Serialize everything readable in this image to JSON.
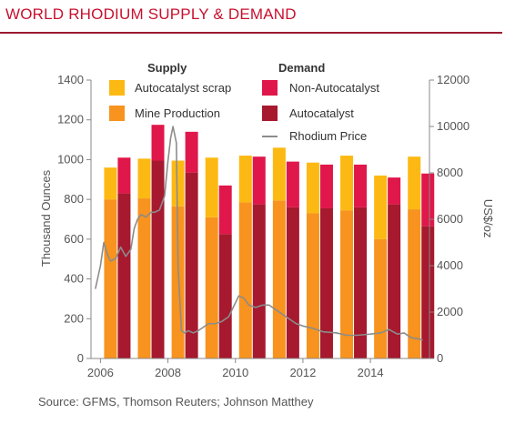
{
  "page": {
    "title": "WORLD RHODIUM SUPPLY & DEMAND",
    "source": "Source: GFMS, Thomson Reuters; Johnson Matthey"
  },
  "chart_data": {
    "type": "bar",
    "xlabel": "",
    "ylabel": "Thousand Ounces",
    "y2label": "US$/oz",
    "ylim": [
      0,
      1400
    ],
    "y2lim": [
      0,
      12000
    ],
    "yticks": [
      "0",
      "200",
      "400",
      "600",
      "800",
      "1000",
      "1200",
      "1400"
    ],
    "y2ticks": [
      "0",
      "2000",
      "4000",
      "6000",
      "8000",
      "10000",
      "12000"
    ],
    "xticks": [
      "2006",
      "2008",
      "2010",
      "2012",
      "2014"
    ],
    "grid": false,
    "legend_position": "top",
    "legend_groups": {
      "supply": "Supply",
      "demand": "Demand"
    },
    "categories": [
      "2006",
      "2007",
      "2008",
      "2009",
      "2010",
      "2011",
      "2012",
      "2013",
      "2014",
      "2015"
    ],
    "series": [
      {
        "name": "Mine Production",
        "group": "Supply",
        "color": "#f7931e",
        "values": [
          800,
          805,
          765,
          710,
          785,
          795,
          730,
          745,
          600,
          750
        ]
      },
      {
        "name": "Autocatalyst scrap",
        "group": "Supply",
        "color": "#fdb913",
        "values": [
          160,
          200,
          230,
          300,
          235,
          265,
          255,
          275,
          320,
          265
        ]
      },
      {
        "name": "Autocatalyst",
        "group": "Demand",
        "color": "#a6192e",
        "values": [
          830,
          995,
          935,
          625,
          775,
          760,
          755,
          760,
          775,
          665
        ]
      },
      {
        "name": "Non-Autocatalyst",
        "group": "Demand",
        "color": "#e0174a",
        "values": [
          180,
          180,
          205,
          245,
          240,
          230,
          220,
          215,
          135,
          265
        ]
      }
    ],
    "price": {
      "name": "Rhodium Price",
      "color": "#8c8c8c",
      "x": [
        2005.85,
        2006.0,
        2006.1,
        2006.2,
        2006.3,
        2006.45,
        2006.6,
        2006.75,
        2006.9,
        2007.0,
        2007.1,
        2007.2,
        2007.35,
        2007.5,
        2007.6,
        2007.75,
        2007.9,
        2008.0,
        2008.08,
        2008.15,
        2008.25,
        2008.3,
        2008.4,
        2008.5,
        2008.6,
        2008.75,
        2008.9,
        2009.0,
        2009.2,
        2009.4,
        2009.6,
        2009.8,
        2010.0,
        2010.1,
        2010.25,
        2010.4,
        2010.6,
        2010.8,
        2011.0,
        2011.2,
        2011.4,
        2011.6,
        2011.8,
        2012.0,
        2012.3,
        2012.6,
        2013.0,
        2013.3,
        2013.6,
        2014.0,
        2014.3,
        2014.55,
        2014.8,
        2015.0,
        2015.2,
        2015.4,
        2015.55
      ],
      "y": [
        3000,
        4000,
        5000,
        4500,
        4200,
        4300,
        4800,
        4400,
        4700,
        5600,
        6000,
        6200,
        6100,
        6300,
        6300,
        6400,
        7000,
        8500,
        9500,
        10000,
        9300,
        4000,
        1200,
        1100,
        1200,
        1100,
        1200,
        1300,
        1500,
        1500,
        1600,
        1800,
        2400,
        2700,
        2600,
        2300,
        2200,
        2300,
        2300,
        2100,
        1900,
        1700,
        1500,
        1400,
        1300,
        1150,
        1100,
        1000,
        1000,
        1050,
        1100,
        1250,
        1050,
        1100,
        900,
        850,
        800
      ]
    }
  }
}
